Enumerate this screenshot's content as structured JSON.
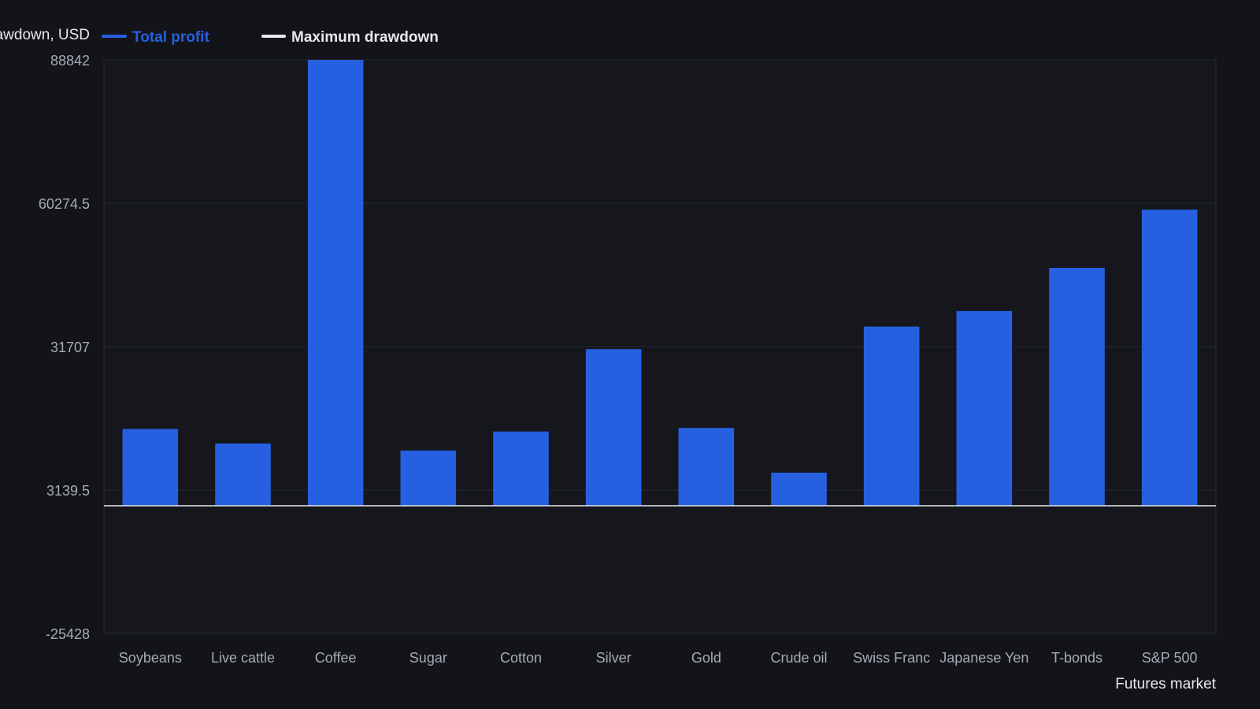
{
  "chart_data": {
    "type": "bar",
    "title": "",
    "ylabel": "Total profit and maximum drawdown, USD",
    "xlabel": "Futures market",
    "categories": [
      "Soybeans",
      "Live cattle",
      "Coffee",
      "Sugar",
      "Cotton",
      "Silver",
      "Gold",
      "Crude oil",
      "Swiss Franc",
      "Japanese Yen",
      "T-bonds",
      "S&P 500"
    ],
    "series": [
      {
        "name": "Total profit",
        "color": "#2660e0",
        "values": [
          15300,
          12400,
          88842,
          11000,
          14800,
          31200,
          15500,
          6600,
          35700,
          38800,
          47400,
          59000
        ]
      },
      {
        "name": "Maximum drawdown",
        "color": "#e6e8ec",
        "values": [
          0,
          0,
          0,
          0,
          0,
          0,
          0,
          0,
          0,
          0,
          0,
          0
        ]
      }
    ],
    "ylim": [
      -25428,
      88842
    ],
    "yticks": [
      "88842",
      "60274.5",
      "31707",
      "3139.5",
      "-25428"
    ],
    "legend": "top-left",
    "grid": true,
    "background": "#12141a",
    "plot_background": "#15171d"
  }
}
